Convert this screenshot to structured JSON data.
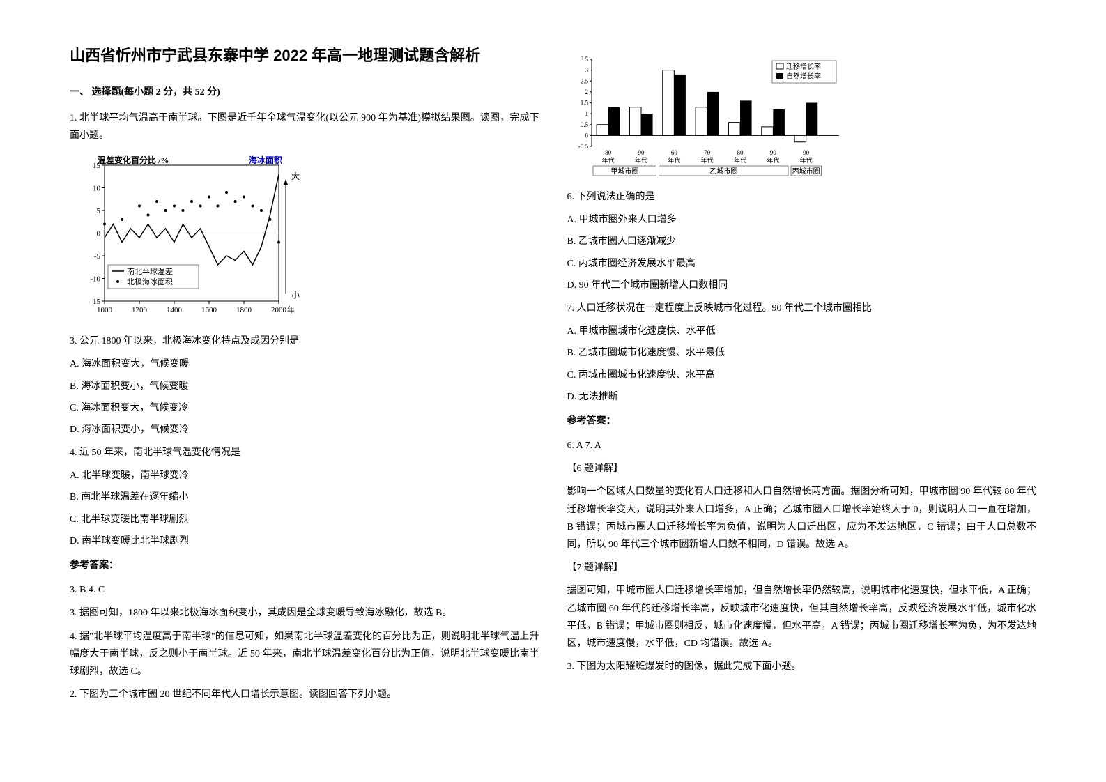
{
  "title": "山西省忻州市宁武县东寨中学 2022 年高一地理测试题含解析",
  "section1_header": "一、 选择题(每小题 2 分，共 52 分)",
  "q1_intro": "1. 北半球平均气温高于南半球。下图是近千年全球气温变化(以公元 900 年为基准)模拟结果图。读图，完成下面小题。",
  "chart1": {
    "type": "scatter-line",
    "left_label": "温差变化百分比 /%",
    "right_label": "海冰面积",
    "right_top_label": "大",
    "right_bottom_label": "小",
    "x_axis_label": "年",
    "xlim": [
      1000,
      2000
    ],
    "xticks": [
      1000,
      1200,
      1400,
      1600,
      1800,
      2000
    ],
    "ylim": [
      -15,
      15
    ],
    "yticks": [
      -15,
      -10,
      -5,
      0,
      5,
      10,
      15
    ],
    "legend": [
      "— 南北半球温差",
      "• 北极海冰面积"
    ],
    "background_color": "#ffffff",
    "line_color": "#000000",
    "point_color": "#000000",
    "temp_diff_line": [
      {
        "x": 1000,
        "y": -1
      },
      {
        "x": 1050,
        "y": 2
      },
      {
        "x": 1100,
        "y": -2
      },
      {
        "x": 1150,
        "y": 1
      },
      {
        "x": 1200,
        "y": -1
      },
      {
        "x": 1250,
        "y": 2
      },
      {
        "x": 1300,
        "y": -1
      },
      {
        "x": 1350,
        "y": 1
      },
      {
        "x": 1400,
        "y": -2
      },
      {
        "x": 1450,
        "y": 2
      },
      {
        "x": 1500,
        "y": -1
      },
      {
        "x": 1550,
        "y": 1
      },
      {
        "x": 1600,
        "y": -3
      },
      {
        "x": 1650,
        "y": -7
      },
      {
        "x": 1700,
        "y": -5
      },
      {
        "x": 1750,
        "y": -6
      },
      {
        "x": 1800,
        "y": -4
      },
      {
        "x": 1850,
        "y": -7
      },
      {
        "x": 1900,
        "y": -3
      },
      {
        "x": 1950,
        "y": 4
      },
      {
        "x": 2000,
        "y": 13
      }
    ],
    "sea_ice_points": [
      {
        "x": 1000,
        "y": 2
      },
      {
        "x": 1100,
        "y": 3
      },
      {
        "x": 1200,
        "y": 6
      },
      {
        "x": 1250,
        "y": 4
      },
      {
        "x": 1300,
        "y": 7
      },
      {
        "x": 1350,
        "y": 5
      },
      {
        "x": 1400,
        "y": 6
      },
      {
        "x": 1450,
        "y": 5
      },
      {
        "x": 1500,
        "y": 7
      },
      {
        "x": 1550,
        "y": 6
      },
      {
        "x": 1600,
        "y": 8
      },
      {
        "x": 1650,
        "y": 6
      },
      {
        "x": 1700,
        "y": 9
      },
      {
        "x": 1750,
        "y": 7
      },
      {
        "x": 1800,
        "y": 8
      },
      {
        "x": 1850,
        "y": 6
      },
      {
        "x": 1900,
        "y": 5
      },
      {
        "x": 1950,
        "y": 3
      },
      {
        "x": 2000,
        "y": -2
      }
    ]
  },
  "q3": "3.  公元 1800 年以来，北极海冰变化特点及成因分别是",
  "q3_a": "A.  海冰面积变大，气候变暖",
  "q3_b": "B.  海冰面积变小，气候变暖",
  "q3_c": "C.  海冰面积变大，气候变冷",
  "q3_d": "D.  海冰面积变小，气候变冷",
  "q4": "4.  近 50 年来，南北半球气温变化情况是",
  "q4_a": "A.  北半球变暖，南半球变冷",
  "q4_b": "B.  南北半球温差在逐年缩小",
  "q4_c": "C.  北半球变暖比南半球剧烈",
  "q4_d": "D.  南半球变暖比北半球剧烈",
  "answer1_header": "参考答案：",
  "answer1": "3. B        4. C",
  "explain3": "3. 据图可知，1800 年以来北极海冰面积变小，其成因是全球变暖导致海冰融化，故选 B。",
  "explain4": "4. 据\"北半球平均温度高于南半球\"的信息可知，如果南北半球温差变化的百分比为正，则说明北半球气温上升幅度大于南半球，反之则小于南半球。近 50 年来，南北半球温差变化百分比为正值，说明北半球变暖比南半球剧烈，故选 C。",
  "q2_intro": "2. 下图为三个城市圈 20 世纪不同年代人口增长示意图。读图回答下列小题。",
  "chart2": {
    "type": "bar",
    "ylim": [
      -0.5,
      3.5
    ],
    "yticks": [
      -0.5,
      0,
      0.5,
      1,
      1.5,
      2,
      2.5,
      3,
      3.5
    ],
    "legend": [
      {
        "label": "迁移增长率",
        "color": "#ffffff",
        "border": "#000000"
      },
      {
        "label": "自然增长率",
        "color": "#000000"
      }
    ],
    "x_groups": [
      "甲城市圈",
      "乙城市圈",
      "丙城市圈"
    ],
    "x_labels": [
      "80年代",
      "90年代",
      "60年代",
      "70年代",
      "80年代",
      "90年代",
      "90年代"
    ],
    "bars": [
      {
        "group": 0,
        "idx": 0,
        "migration": 0.5,
        "natural": 1.3
      },
      {
        "group": 0,
        "idx": 1,
        "migration": 1.3,
        "natural": 1.0
      },
      {
        "group": 1,
        "idx": 0,
        "migration": 3.0,
        "natural": 2.8
      },
      {
        "group": 1,
        "idx": 1,
        "migration": 1.3,
        "natural": 2.0
      },
      {
        "group": 1,
        "idx": 2,
        "migration": 0.6,
        "natural": 1.6
      },
      {
        "group": 1,
        "idx": 3,
        "migration": 0.4,
        "natural": 1.2
      },
      {
        "group": 2,
        "idx": 0,
        "migration": -0.3,
        "natural": 1.5
      }
    ],
    "bar_width": 0.35,
    "background_color": "#ffffff"
  },
  "q6": "6.  下列说法正确的是",
  "q6_a": "A.  甲城市圈外来人口增多",
  "q6_b": "B.  乙城市圈人口逐渐减少",
  "q6_c": "C.  丙城市圈经济发展水平最高",
  "q6_d": "D.  90 年代三个城市圈新增人口数相同",
  "q7": "7.  人口迁移状况在一定程度上反映城市化过程。90 年代三个城市圈相比",
  "q7_a": "A.  甲城市圈城市化速度快、水平低",
  "q7_b": "B.  乙城市圈城市化速度慢、水平最低",
  "q7_c": "C.  丙城市圈城市化速度快、水平高",
  "q7_d": "D.  无法推断",
  "answer2_header": "参考答案：",
  "answer2": "6. A        7. A",
  "explain6_header": "【6 题详解】",
  "explain6": "影响一个区域人口数量的变化有人口迁移和人口自然增长两方面。据图分析可知，甲城市圈 90 年代较 80 年代迁移增长率变大，说明其外来人口增多，A 正确；乙城市圈人口增长率始终大于 0，则说明人口一直在增加，B 错误；丙城市圈人口迁移增长率为负值，说明为人口迁出区，应为不发达地区，C 错误；由于人口总数不同，所以 90 年代三个城市圈新增人口数不相同，D 错误。故选 A。",
  "explain7_header": "【7 题详解】",
  "explain7": "据图可知，甲城市圈人口迁移增长率增加，但自然增长率仍然较高，说明城市化速度快，但水平低，A 正确；乙城市圈 60 年代的迁移增长率高，反映城市化速度快，但其自然增长率高，反映经济发展水平低，城市化水平低，B 错误；甲城市圈则相反，城市化速度慢，但水平高，A 错误；丙城市圈迁移增长率为负，为不发达地区，城市速度慢，水平低，CD 均错误。故选 A。",
  "q3_next": "3. 下图为太阳耀斑爆发时的图像，据此完成下面小题。"
}
